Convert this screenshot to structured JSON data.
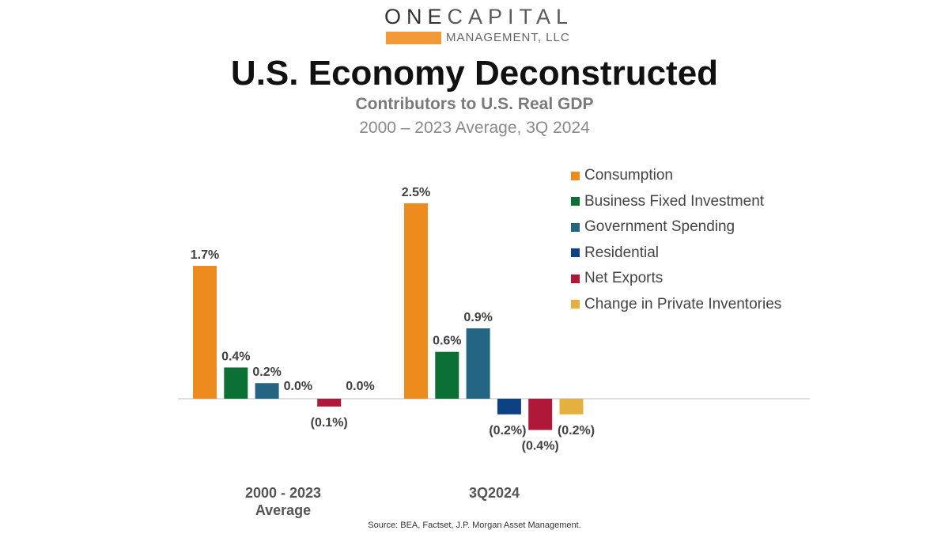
{
  "logo": {
    "word1": "ONE",
    "word2": "CAPITAL",
    "sub": "MANAGEMENT, LLC"
  },
  "title": "U.S. Economy Deconstructed",
  "subtitle": "Contributors to U.S. Real GDP",
  "subtitle2": "2000 – 2023 Average, 3Q 2024",
  "source": "Source: BEA, Factset, J.P. Morgan Asset Management.",
  "chart_data": {
    "type": "bar",
    "title": "Contributors to U.S. Real GDP",
    "categories": [
      "2000 - 2023 Average",
      "3Q2024"
    ],
    "category_lines": [
      [
        "2000 - 2023",
        "Average"
      ],
      [
        "3Q2024"
      ]
    ],
    "ylim": [
      -0.4,
      2.5
    ],
    "grid": false,
    "legend_position": "top-right",
    "series": [
      {
        "name": "Consumption",
        "color": "#ee8b1e",
        "values": [
          1.7,
          2.5
        ],
        "labels": [
          "1.7%",
          "2.5%"
        ]
      },
      {
        "name": "Business Fixed Investment",
        "color": "#0a7034",
        "values": [
          0.4,
          0.6
        ],
        "labels": [
          "0.4%",
          "0.6%"
        ]
      },
      {
        "name": "Government Spending",
        "color": "#236582",
        "values": [
          0.2,
          0.9
        ],
        "labels": [
          "0.2%",
          "0.9%"
        ]
      },
      {
        "name": "Residential",
        "color": "#0c4281",
        "values": [
          0.0,
          -0.2
        ],
        "labels": [
          "0.0%",
          "(0.2%)"
        ]
      },
      {
        "name": "Net Exports",
        "color": "#b0183a",
        "values": [
          -0.1,
          -0.4
        ],
        "labels": [
          "(0.1%)",
          "(0.4%)"
        ]
      },
      {
        "name": "Change in Private Inventories",
        "color": "#e4b13e",
        "values": [
          0.0,
          -0.2
        ],
        "labels": [
          "0.0%",
          "(0.2%)"
        ]
      }
    ]
  }
}
